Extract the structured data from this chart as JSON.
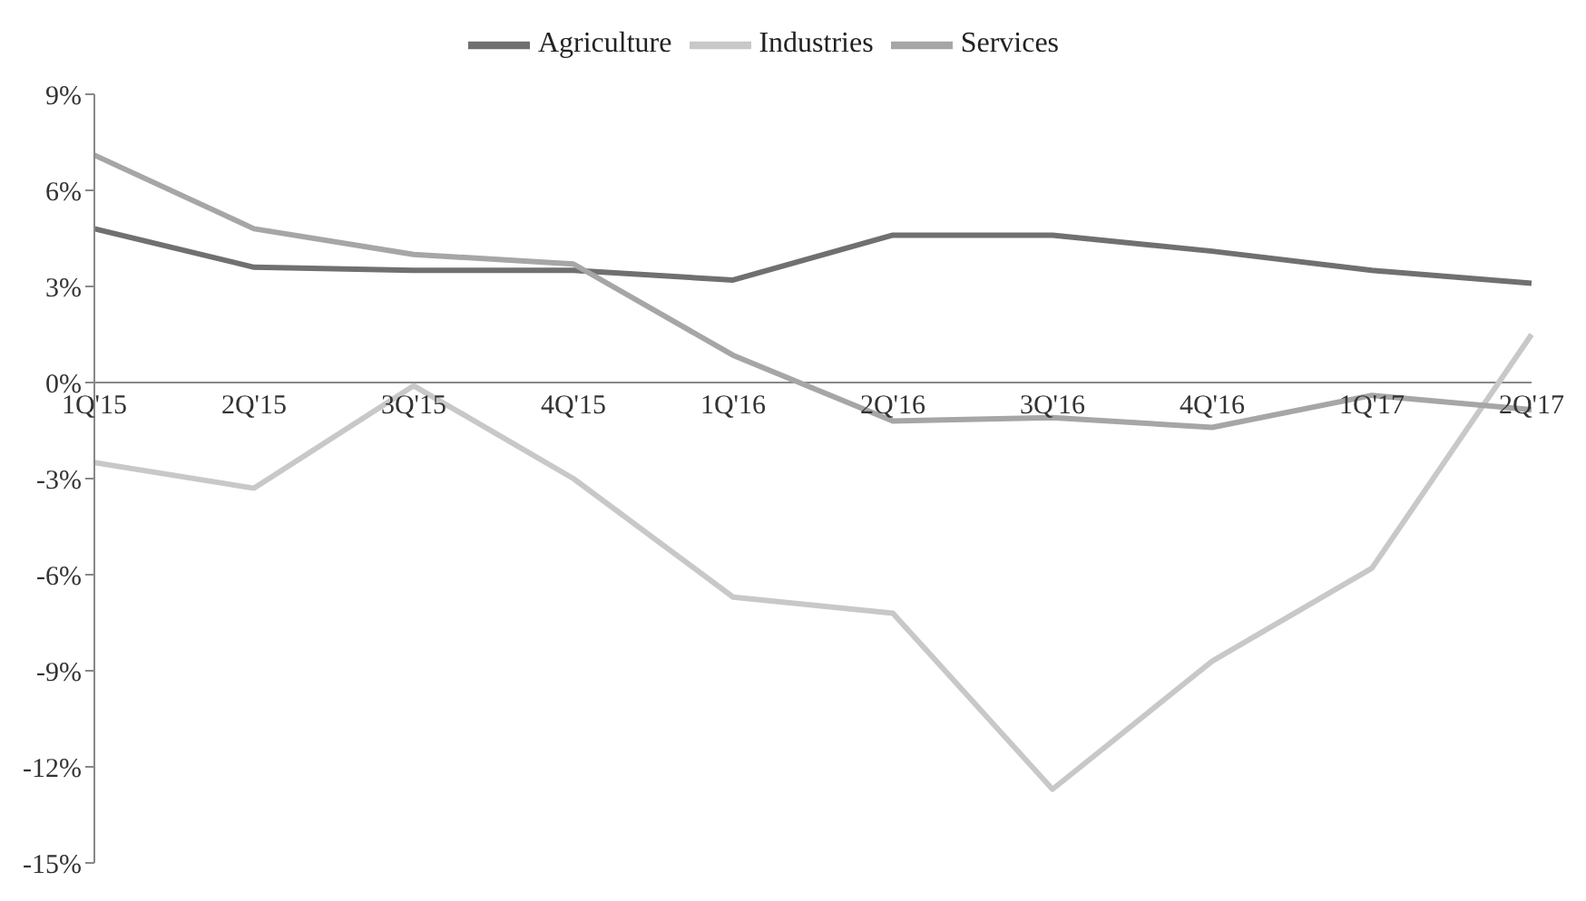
{
  "chart_data": {
    "type": "line",
    "categories": [
      "1Q'15",
      "2Q'15",
      "3Q'15",
      "4Q'15",
      "1Q'16",
      "2Q'16",
      "3Q'16",
      "4Q'16",
      "1Q'17",
      "2Q'17"
    ],
    "series": [
      {
        "name": "Agriculture",
        "color": "#707070",
        "values": [
          4.8,
          3.6,
          3.5,
          3.5,
          3.2,
          4.6,
          4.6,
          4.1,
          3.5,
          3.1
        ]
      },
      {
        "name": "Industries",
        "color": "#c8c8c8",
        "values": [
          -2.5,
          -3.3,
          -0.1,
          -3.0,
          -6.7,
          -7.2,
          -12.7,
          -8.7,
          -5.8,
          1.5
        ]
      },
      {
        "name": "Services",
        "color": "#a6a6a6",
        "values": [
          7.1,
          4.8,
          4.0,
          3.7,
          0.85,
          -1.2,
          -1.1,
          -1.4,
          -0.4,
          -0.85
        ]
      }
    ],
    "ylim": [
      -15,
      9
    ],
    "yticks": [
      {
        "value": -15,
        "label": "-15%"
      },
      {
        "value": -12,
        "label": "-12%"
      },
      {
        "value": -9,
        "label": "-9%"
      },
      {
        "value": -6,
        "label": "-6%"
      },
      {
        "value": -3,
        "label": "-3%"
      },
      {
        "value": 0,
        "label": "0%"
      },
      {
        "value": 3,
        "label": "3%"
      },
      {
        "value": 6,
        "label": "6%"
      },
      {
        "value": 9,
        "label": "9%"
      }
    ],
    "grid": false,
    "legend": "top",
    "marker": "none",
    "line_style": "solid"
  }
}
